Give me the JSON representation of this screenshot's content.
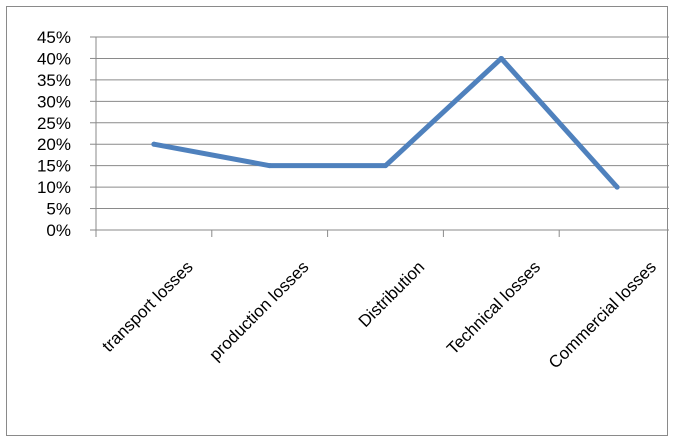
{
  "chart_data": {
    "type": "line",
    "title": "",
    "xlabel": "",
    "ylabel": "",
    "categories": [
      "transport losses",
      "production losses",
      "Distribution",
      "Technical losses",
      "Commercial losses"
    ],
    "series": [
      {
        "values": [
          20,
          15,
          15,
          40,
          10
        ],
        "color": "#4f81bd"
      }
    ],
    "ylim": [
      0,
      45
    ],
    "y_ticks": [
      "0%",
      "5%",
      "10%",
      "15%",
      "20%",
      "25%",
      "30%",
      "35%",
      "40%",
      "45%"
    ],
    "grid": true,
    "legend": "none",
    "gridline_color": "#8a8a8a",
    "axis_color": "#8a8a8a"
  }
}
